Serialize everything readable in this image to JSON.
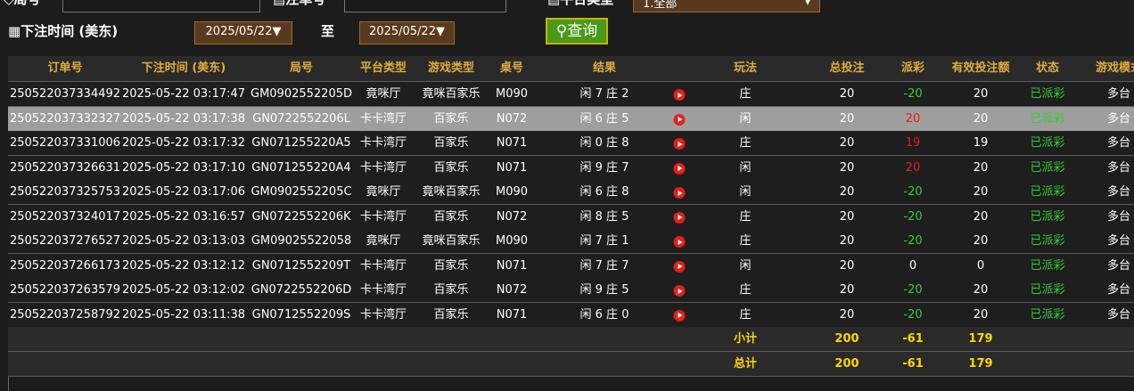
{
  "filters": {
    "round_label": "局号",
    "order_label": "注单号",
    "platform_label": "平台类型",
    "platform_value": "1.全部",
    "time_label": "下注时间 (美东)",
    "date_from": "2025/05/22▼",
    "to_label": "至",
    "date_to": "2025/05/22▼",
    "query_button": "查询"
  },
  "table": {
    "columns": [
      "订单号",
      "下注时间 (美东)",
      "局号",
      "平台类型",
      "游戏类型",
      "桌号",
      "结果",
      "玩法",
      "总投注",
      "派彩",
      "有效投注额",
      "状态",
      "游戏模式"
    ],
    "rows": [
      [
        "250522037334492",
        "2025-05-22 03:17:47",
        "GM0902552205D",
        "竟咪厅",
        "竟咪百家乐",
        "M090",
        "闲 7 庄 2",
        "庄",
        "20",
        "-20",
        "20",
        "已派彩",
        "多台"
      ],
      [
        "250522037332327",
        "2025-05-22 03:17:38",
        "GN0722552206L",
        "卡卡湾厅",
        "百家乐",
        "N072",
        "闲 6 庄 5",
        "闲",
        "20",
        "20",
        "20",
        "已派彩",
        "多台"
      ],
      [
        "250522037331006",
        "2025-05-22 03:17:32",
        "GN071255220A5",
        "卡卡湾厅",
        "百家乐",
        "N071",
        "闲 0 庄 8",
        "庄",
        "20",
        "19",
        "19",
        "已派彩",
        "多台"
      ],
      [
        "250522037326631",
        "2025-05-22 03:17:10",
        "GN071255220A4",
        "卡卡湾厅",
        "百家乐",
        "N071",
        "闲 9 庄 7",
        "闲",
        "20",
        "20",
        "20",
        "已派彩",
        "多台"
      ],
      [
        "250522037325753",
        "2025-05-22 03:17:06",
        "GM0902552205C",
        "竟咪厅",
        "竟咪百家乐",
        "M090",
        "闲 6 庄 8",
        "闲",
        "20",
        "-20",
        "20",
        "已派彩",
        "多台"
      ],
      [
        "250522037324017",
        "2025-05-22 03:16:57",
        "GN0722552206K",
        "卡卡湾厅",
        "百家乐",
        "N072",
        "闲 8 庄 5",
        "庄",
        "20",
        "-20",
        "20",
        "已派彩",
        "多台"
      ],
      [
        "250522037276527",
        "2025-05-22 03:13:03",
        "GM09025522058",
        "竟咪厅",
        "竟咪百家乐",
        "M090",
        "闲 7 庄 1",
        "庄",
        "20",
        "-20",
        "20",
        "已派彩",
        "多台"
      ],
      [
        "250522037266173",
        "2025-05-22 03:12:12",
        "GN0712552209T",
        "卡卡湾厅",
        "百家乐",
        "N071",
        "闲 7 庄 7",
        "闲",
        "20",
        "0",
        "0",
        "已派彩",
        "多台"
      ],
      [
        "250522037263579",
        "2025-05-22 03:12:02",
        "GN0722552206D",
        "卡卡湾厅",
        "百家乐",
        "N072",
        "闲 9 庄 5",
        "庄",
        "20",
        "-20",
        "20",
        "已派彩",
        "多台"
      ],
      [
        "250522037258792",
        "2025-05-22 03:11:38",
        "GN0712552209S",
        "卡卡湾厅",
        "百家乐",
        "N071",
        "闲 6 庄 0",
        "庄",
        "20",
        "-20",
        "20",
        "已派彩",
        "多台"
      ]
    ],
    "highlighted_row": 1,
    "summary": [
      {
        "label": "小计",
        "total": "200",
        "payout": "-61",
        "valid": "179"
      },
      {
        "label": "总计",
        "total": "200",
        "payout": "-61",
        "valid": "179"
      }
    ]
  }
}
